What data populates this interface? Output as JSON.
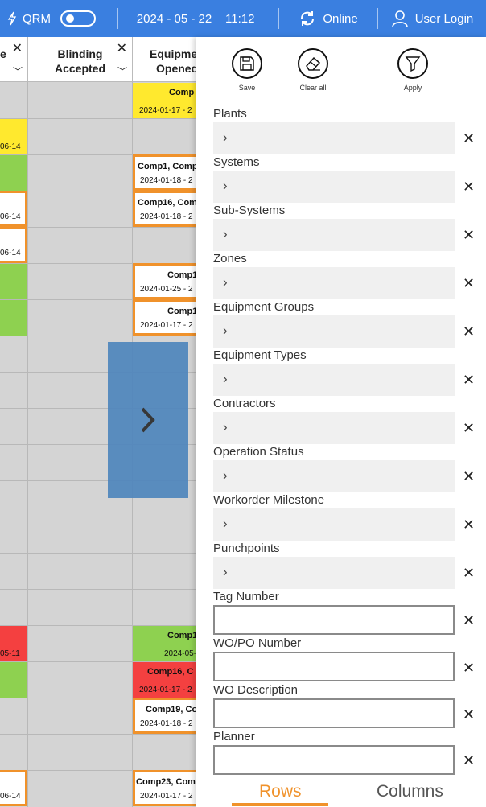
{
  "topbar": {
    "app_name": "QRM",
    "date": "2024 - 05 - 22",
    "time": "11:12",
    "status": "Online",
    "user": "User Login"
  },
  "grid": {
    "col0_header": "e",
    "col1_header_line1": "Blinding",
    "col1_header_line2": "Accepted",
    "col2_header_line1": "Equipmen",
    "col2_header_line2": "Opened",
    "col0_cells": [
      "06-14",
      "06-14",
      "06-14",
      "05-11",
      "06-14"
    ],
    "col2_cells": [
      {
        "name": "Comp",
        "date": "2024-01-17 - 2"
      },
      {
        "name": "Comp1, Comp",
        "date": "2024-01-18 - 2"
      },
      {
        "name": "Comp16, Com",
        "date": "2024-01-18 - 2"
      },
      {
        "name": "Comp1",
        "date": "2024-01-25 - 2"
      },
      {
        "name": "Comp1",
        "date": "2024-01-17 - 2"
      },
      {
        "name": "Comp1",
        "date": "2024-05-"
      },
      {
        "name": "Comp16, C",
        "date": "2024-01-17 - 2"
      },
      {
        "name": "Comp19, Co",
        "date": "2024-01-18 - 2"
      },
      {
        "name": "Comp23, Com",
        "date": "2024-01-17 - 2"
      }
    ]
  },
  "panel": {
    "toolbar": {
      "save": "Save",
      "clear_all": "Clear all",
      "apply": "Apply"
    },
    "filters": [
      {
        "label": "Plants"
      },
      {
        "label": "Systems"
      },
      {
        "label": "Sub-Systems"
      },
      {
        "label": "Zones"
      },
      {
        "label": "Equipment Groups"
      },
      {
        "label": "Equipment Types"
      },
      {
        "label": "Contractors"
      },
      {
        "label": "Operation Status"
      },
      {
        "label": "Workorder Milestone"
      },
      {
        "label": "Punchpoints"
      }
    ],
    "text_filters": [
      {
        "label": "Tag Number",
        "value": ""
      },
      {
        "label": "WO/PO Number",
        "value": ""
      },
      {
        "label": "WO Description",
        "value": ""
      },
      {
        "label": "Planner",
        "value": ""
      }
    ],
    "tabs": {
      "rows": "Rows",
      "columns": "Columns"
    }
  }
}
